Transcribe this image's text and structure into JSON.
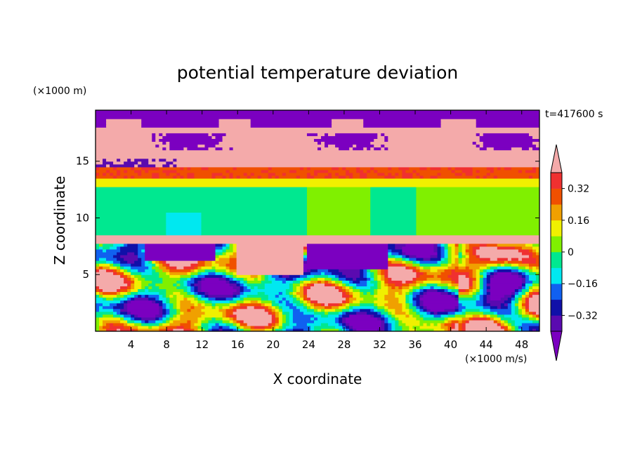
{
  "chart_data": {
    "type": "heatmap",
    "title": "potential temperature deviation",
    "xlabel": "X coordinate",
    "ylabel": "Z coordinate",
    "x_unit": "(×1000 m/s)",
    "y_unit": "(×1000 m)",
    "time_label": "t=417600 s",
    "xlim": [
      0,
      50
    ],
    "ylim": [
      0,
      19.5
    ],
    "x_ticks": [
      4,
      8,
      12,
      16,
      20,
      24,
      28,
      32,
      36,
      40,
      44,
      48
    ],
    "y_ticks": [
      5,
      10,
      15
    ],
    "colorbar": {
      "levels": [
        -0.4,
        -0.32,
        -0.24,
        -0.16,
        -0.08,
        0,
        0.08,
        0.16,
        0.24,
        0.32,
        0.4
      ],
      "tick_labels": [
        "0.32",
        "0.16",
        "0",
        "−0.16",
        "−0.32"
      ],
      "tick_values": [
        0.32,
        0.16,
        0,
        -0.16,
        -0.32
      ],
      "colors": [
        "#7b00c0",
        "#5a0ab0",
        "#1010a8",
        "#1060f0",
        "#00e8f0",
        "#00e890",
        "#80f000",
        "#f0f000",
        "#f0a000",
        "#f05000",
        "#f03030",
        "#f4aaaa"
      ]
    },
    "layers": [
      {
        "z": [
          18,
          19.5
        ],
        "value": "< -0.4"
      },
      {
        "z": [
          14.5,
          18
        ],
        "value": "> 0.4"
      },
      {
        "z": [
          13.5,
          14.5
        ],
        "value": "0.24 to 0.4"
      },
      {
        "z": [
          12.8,
          13.5
        ],
        "value": "0.08 to 0.24"
      },
      {
        "z": [
          8.6,
          12.8
        ],
        "value": "-0.08 to 0.08"
      },
      {
        "z": [
          7.8,
          8.6
        ],
        "value": "> 0.4"
      },
      {
        "z": [
          0,
          7.8
        ],
        "value": "-0.4 to 0.4 (turbulent)"
      }
    ]
  }
}
